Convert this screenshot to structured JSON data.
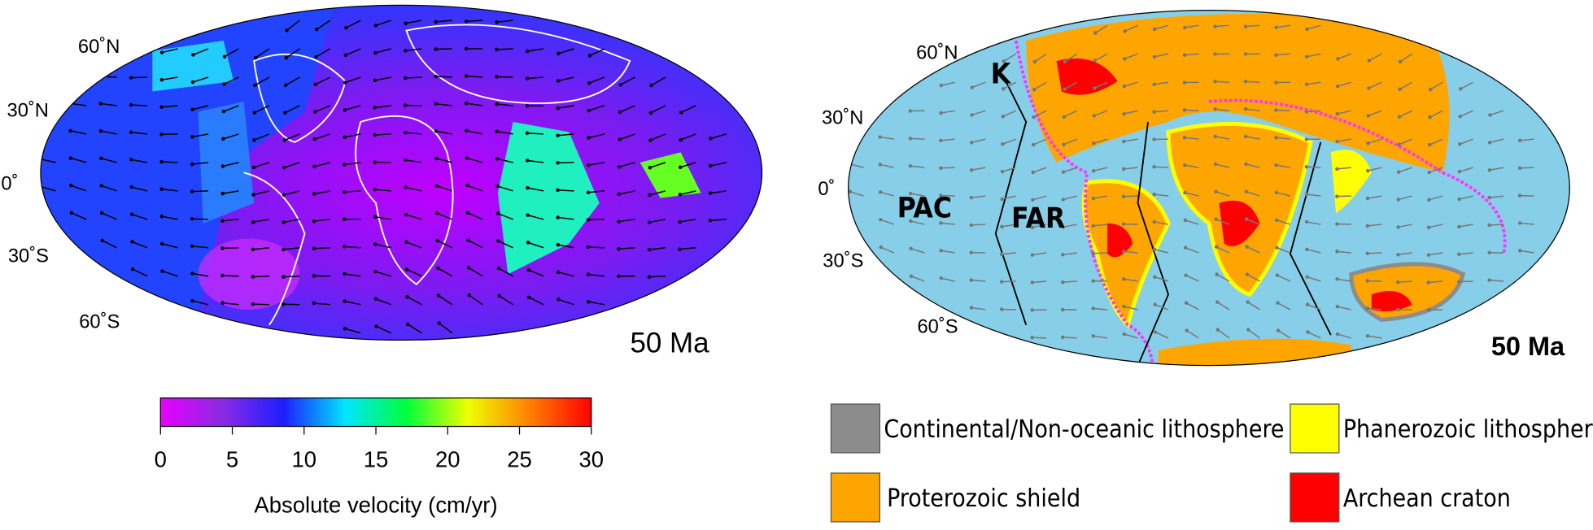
{
  "left_map": {
    "latitude_labels": [
      "60˚N",
      "30˚N",
      "0˚",
      "30˚S",
      "60˚S"
    ],
    "age": "50 Ma",
    "colorbar": {
      "lim": [
        0,
        30
      ],
      "ticks": [
        0,
        5,
        10,
        15,
        20,
        25,
        30
      ],
      "label": "Absolute velocity (cm/yr)",
      "colors": [
        "#e600ff",
        "#8a2be2",
        "#1e1eff",
        "#00e5ff",
        "#00ff3c",
        "#f0ff00",
        "#ff8000",
        "#ff0000"
      ]
    }
  },
  "right_map": {
    "latitude_labels": [
      "60˚N",
      "30˚N",
      "0˚",
      "30˚S",
      "60˚S"
    ],
    "plates": [
      "K",
      "PAC",
      "FAR"
    ],
    "age": "50 Ma",
    "legend": [
      {
        "name": "Continental/Non-oceanic lithosphere",
        "color": "#8c8c8c"
      },
      {
        "name": "Phanerozoic lithosphere",
        "color": "#ffff00"
      },
      {
        "name": "Proterozoic shield",
        "color": "#ffa500"
      },
      {
        "name": "Archean craton",
        "color": "#ff0000"
      }
    ]
  }
}
